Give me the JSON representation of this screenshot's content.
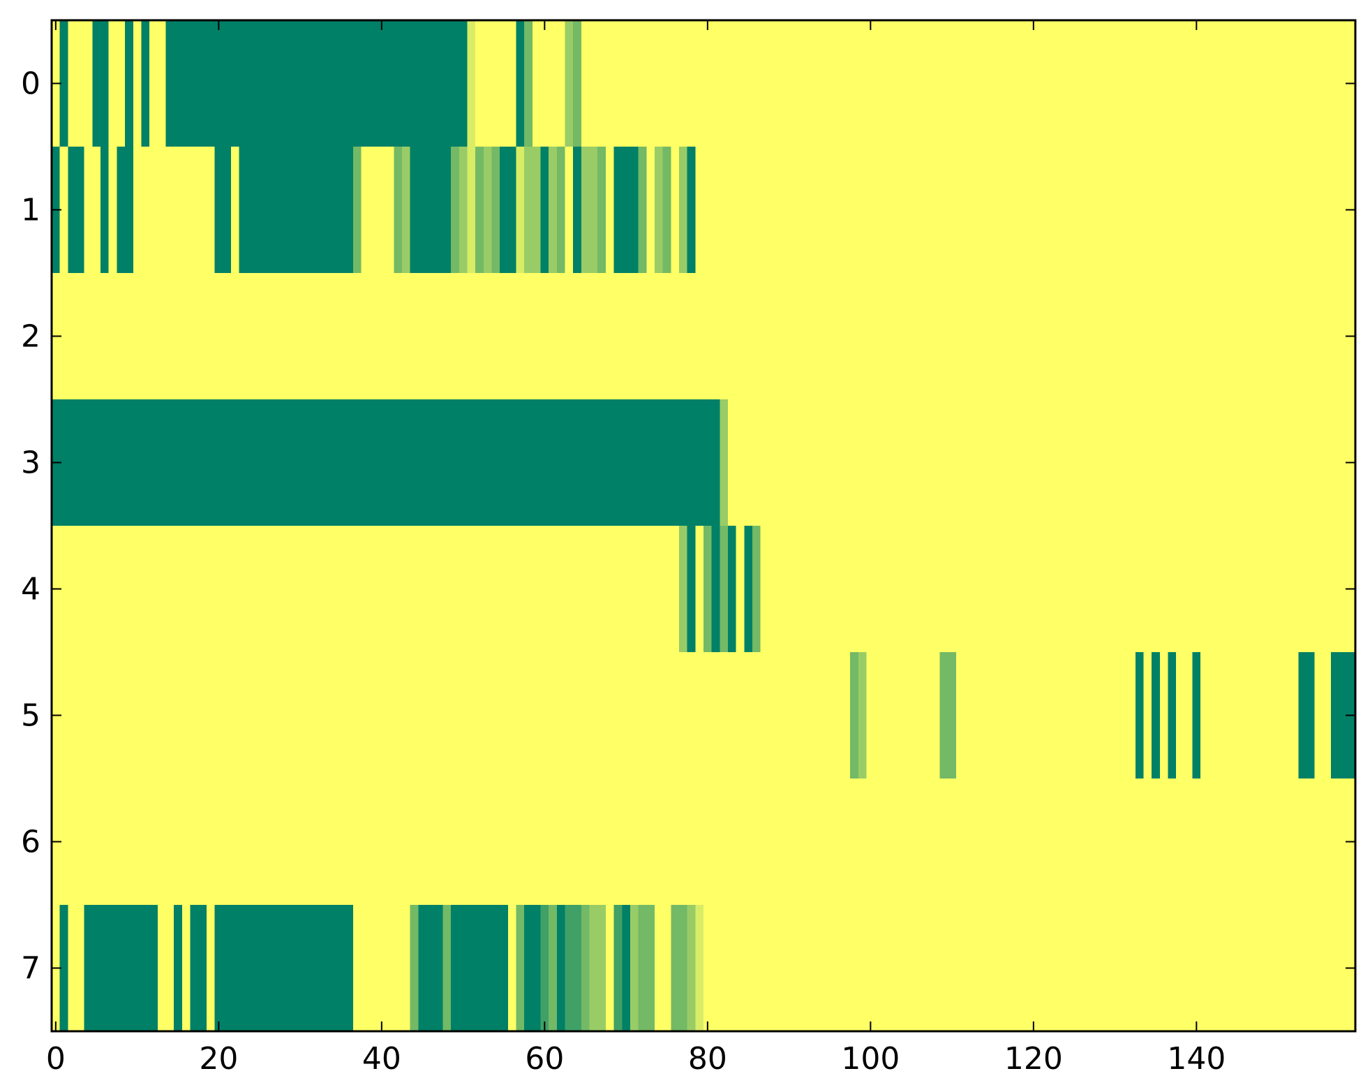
{
  "chart_data": {
    "type": "heatmap",
    "title": "",
    "xlabel": "",
    "ylabel": "",
    "xlim": [
      -0.5,
      159.5
    ],
    "ylim": [
      7.5,
      -0.5
    ],
    "n_rows": 8,
    "n_cols": 160,
    "x_ticks": [
      0,
      20,
      40,
      60,
      80,
      100,
      120,
      140
    ],
    "x_tick_labels": [
      "0",
      "20",
      "40",
      "60",
      "80",
      "100",
      "120",
      "140"
    ],
    "y_ticks": [
      0,
      1,
      2,
      3,
      4,
      5,
      6,
      7
    ],
    "y_tick_labels": [
      "0",
      "1",
      "2",
      "3",
      "4",
      "5",
      "6",
      "7"
    ],
    "background_value": 0,
    "colormap": "summer_r",
    "colors": {
      "low": "#ffff66",
      "high": "#008066",
      "levels": {
        "0.15": "#e6f066",
        "0.4": "#a6d366",
        "0.55": "#8ac666",
        "0.75": "#55aa66",
        "1": "#008066"
      }
    },
    "grid": false,
    "legend": "none",
    "rows": [
      {
        "row": 0,
        "segments": [
          [
            1,
            1,
            1
          ],
          [
            5,
            6,
            1
          ],
          [
            9,
            9,
            1
          ],
          [
            11,
            11,
            1
          ],
          [
            14,
            50,
            1
          ],
          [
            51,
            51,
            0.15
          ],
          [
            57,
            57,
            1
          ],
          [
            58,
            58,
            0.55
          ],
          [
            63,
            63,
            0.4
          ],
          [
            64,
            64,
            0.55
          ]
        ]
      },
      {
        "row": 1,
        "segments": [
          [
            0,
            0,
            1
          ],
          [
            2,
            3,
            1
          ],
          [
            6,
            6,
            1
          ],
          [
            8,
            9,
            1
          ],
          [
            20,
            21,
            1
          ],
          [
            23,
            36,
            1
          ],
          [
            37,
            37,
            0.55
          ],
          [
            42,
            42,
            0.55
          ],
          [
            43,
            43,
            0.4
          ],
          [
            44,
            48,
            1
          ],
          [
            49,
            49,
            0.55
          ],
          [
            50,
            50,
            0.4
          ],
          [
            51,
            51,
            0.15
          ],
          [
            52,
            52,
            0.55
          ],
          [
            53,
            53,
            0.4
          ],
          [
            54,
            54,
            0.55
          ],
          [
            55,
            56,
            1
          ],
          [
            57,
            57,
            0.15
          ],
          [
            58,
            59,
            0.4
          ],
          [
            60,
            60,
            1
          ],
          [
            61,
            61,
            0.4
          ],
          [
            62,
            62,
            0.55
          ],
          [
            64,
            64,
            1
          ],
          [
            65,
            66,
            0.4
          ],
          [
            67,
            67,
            0.55
          ],
          [
            69,
            71,
            1
          ],
          [
            72,
            72,
            0.55
          ],
          [
            74,
            74,
            0.4
          ],
          [
            75,
            75,
            0.55
          ],
          [
            77,
            77,
            0.4
          ],
          [
            78,
            78,
            1
          ]
        ]
      },
      {
        "row": 2,
        "segments": []
      },
      {
        "row": 3,
        "segments": [
          [
            -0.5,
            81,
            1
          ],
          [
            82,
            82,
            0.4
          ]
        ]
      },
      {
        "row": 4,
        "segments": [
          [
            77,
            77,
            0.4
          ],
          [
            78,
            78,
            1
          ],
          [
            80,
            80,
            0.55
          ],
          [
            81,
            81,
            1
          ],
          [
            82,
            82,
            0.55
          ],
          [
            83,
            83,
            1
          ],
          [
            85,
            85,
            1
          ],
          [
            86,
            86,
            0.55
          ]
        ]
      },
      {
        "row": 5,
        "segments": [
          [
            98,
            98,
            0.55
          ],
          [
            99,
            99,
            0.4
          ],
          [
            109,
            110,
            0.55
          ],
          [
            133,
            133,
            1
          ],
          [
            135,
            135,
            1
          ],
          [
            137,
            137,
            1
          ],
          [
            140,
            140,
            1
          ],
          [
            153,
            154,
            1
          ],
          [
            157,
            159,
            1
          ]
        ]
      },
      {
        "row": 6,
        "segments": []
      },
      {
        "row": 7,
        "segments": [
          [
            1,
            1,
            1
          ],
          [
            4,
            12,
            1
          ],
          [
            15,
            15,
            1
          ],
          [
            17,
            18,
            1
          ],
          [
            20,
            36,
            1
          ],
          [
            44,
            44,
            0.55
          ],
          [
            45,
            47,
            1
          ],
          [
            48,
            48,
            0.55
          ],
          [
            49,
            55,
            1
          ],
          [
            57,
            57,
            0.55
          ],
          [
            58,
            59,
            1
          ],
          [
            60,
            60,
            0.75
          ],
          [
            61,
            61,
            0.55
          ],
          [
            62,
            62,
            1
          ],
          [
            63,
            64,
            0.75
          ],
          [
            65,
            65,
            0.55
          ],
          [
            66,
            67,
            0.4
          ],
          [
            69,
            69,
            0.75
          ],
          [
            70,
            70,
            1
          ],
          [
            71,
            71,
            0.4
          ],
          [
            72,
            73,
            0.55
          ],
          [
            76,
            77,
            0.55
          ],
          [
            78,
            78,
            0.4
          ],
          [
            79,
            79,
            0.15
          ]
        ]
      }
    ]
  }
}
